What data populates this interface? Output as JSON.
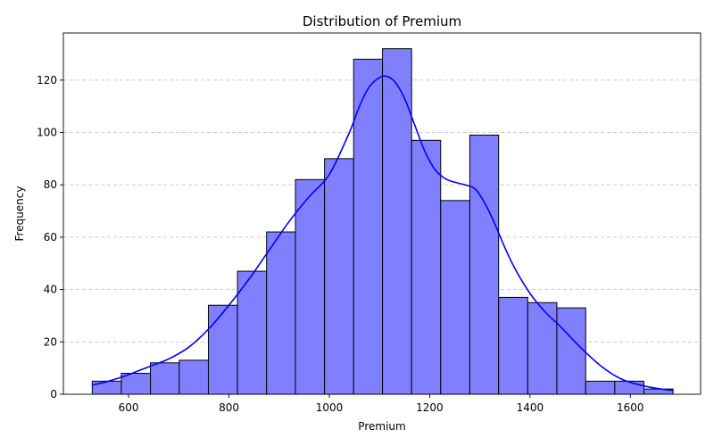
{
  "chart_data": {
    "type": "bar",
    "subtype": "histogram",
    "title": "Distribution of Premium",
    "xlabel": "Premium",
    "ylabel": "Frequency",
    "xlim": [
      470,
      1740
    ],
    "ylim": [
      0,
      138
    ],
    "xticks": [
      600,
      800,
      1000,
      1200,
      1400,
      1600
    ],
    "yticks": [
      0,
      20,
      40,
      60,
      80,
      100,
      120
    ],
    "grid": "y-dashed",
    "bar_color": "#8080ff",
    "edge_color": "#000000",
    "kde_color": "#0000ff",
    "bins": [
      {
        "x0": 527.5,
        "x1": 585.5,
        "count": 5
      },
      {
        "x0": 585.5,
        "x1": 643.5,
        "count": 8
      },
      {
        "x0": 643.5,
        "x1": 701.0,
        "count": 12
      },
      {
        "x0": 701.0,
        "x1": 759.0,
        "count": 13
      },
      {
        "x0": 759.0,
        "x1": 817.0,
        "count": 34
      },
      {
        "x0": 817.0,
        "x1": 875.0,
        "count": 47
      },
      {
        "x0": 875.0,
        "x1": 932.5,
        "count": 62
      },
      {
        "x0": 932.5,
        "x1": 990.5,
        "count": 82
      },
      {
        "x0": 990.5,
        "x1": 1048.5,
        "count": 90
      },
      {
        "x0": 1048.5,
        "x1": 1106.0,
        "count": 128
      },
      {
        "x0": 1106.0,
        "x1": 1164.0,
        "count": 132
      },
      {
        "x0": 1164.0,
        "x1": 1222.0,
        "count": 97
      },
      {
        "x0": 1222.0,
        "x1": 1280.0,
        "count": 74
      },
      {
        "x0": 1280.0,
        "x1": 1337.5,
        "count": 99
      },
      {
        "x0": 1337.5,
        "x1": 1395.5,
        "count": 37
      },
      {
        "x0": 1395.5,
        "x1": 1453.5,
        "count": 35
      },
      {
        "x0": 1453.5,
        "x1": 1511.0,
        "count": 33
      },
      {
        "x0": 1511.0,
        "x1": 1569.0,
        "count": 5
      },
      {
        "x0": 1569.0,
        "x1": 1627.0,
        "count": 5
      },
      {
        "x0": 1627.0,
        "x1": 1685.0,
        "count": 2
      }
    ],
    "kde": {
      "x": [
        527,
        560,
        600,
        640,
        680,
        720,
        760,
        800,
        840,
        880,
        920,
        960,
        1000,
        1040,
        1060,
        1080,
        1100,
        1113,
        1130,
        1150,
        1170,
        1190,
        1210,
        1230,
        1250,
        1270,
        1290,
        1310,
        1330,
        1350,
        1370,
        1400,
        1430,
        1460,
        1500,
        1540,
        1580,
        1620,
        1660,
        1685
      ],
      "y": [
        3.5,
        5,
        7.5,
        10.5,
        13.5,
        18,
        25,
        34,
        44,
        55,
        66,
        75.5,
        84,
        100,
        110,
        117.5,
        121,
        121.5,
        119.5,
        113,
        103,
        93,
        86,
        82.5,
        81,
        80,
        78.5,
        73,
        65,
        56,
        48,
        38.5,
        31.5,
        26,
        18,
        11,
        6,
        3.5,
        2,
        1.5
      ]
    }
  }
}
